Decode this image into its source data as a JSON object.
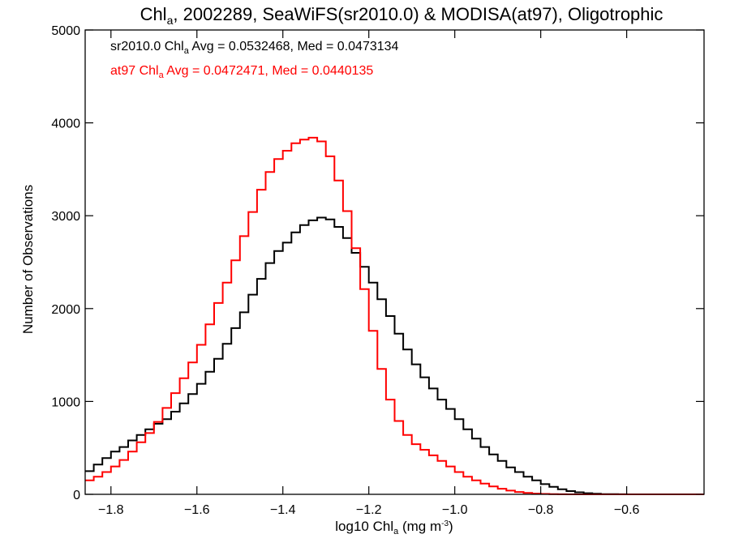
{
  "chart_data": {
    "type": "line",
    "style": "step-histogram",
    "title": {
      "pre": "Chl",
      "sub": "a",
      "post": ", 2002289, SeaWiFS(sr2010.0) & MODISA(at97), Oligotrophic"
    },
    "xlabel": {
      "pre": "log10 Chl",
      "sub": "a",
      "mid": " (mg m",
      "sup": "-3",
      "post": ")"
    },
    "ylabel": "Number of Observations",
    "xlim": [
      -1.86,
      -0.42
    ],
    "ylim": [
      0,
      5000
    ],
    "x_ticks": [
      -1.8,
      -1.6,
      -1.4,
      -1.2,
      -1.0,
      -0.8,
      -0.6
    ],
    "x_tick_labels": [
      "−1.8",
      "−1.6",
      "−1.4",
      "−1.2",
      "−1.0",
      "−0.8",
      "−0.6"
    ],
    "y_ticks": [
      0,
      1000,
      2000,
      3000,
      4000,
      5000
    ],
    "y_tick_labels": [
      "0",
      "1000",
      "2000",
      "3000",
      "4000",
      "5000"
    ],
    "grid": false,
    "legend_position": "top-left",
    "annotations": [
      {
        "pre": "sr2010.0 Chl",
        "sub": "a",
        "post": " Avg = 0.0532468, Med = 0.0473134",
        "color": "#000000"
      },
      {
        "pre": "at97 Chl",
        "sub": "a",
        "post": " Avg = 0.0472471, Med = 0.0440135",
        "color": "#ff0000"
      }
    ],
    "series": [
      {
        "color": "#000000",
        "x": [
          -1.86,
          -1.84,
          -1.82,
          -1.8,
          -1.78,
          -1.76,
          -1.74,
          -1.72,
          -1.7,
          -1.68,
          -1.66,
          -1.64,
          -1.62,
          -1.6,
          -1.58,
          -1.56,
          -1.54,
          -1.52,
          -1.5,
          -1.48,
          -1.46,
          -1.44,
          -1.42,
          -1.4,
          -1.38,
          -1.36,
          -1.34,
          -1.32,
          -1.3,
          -1.28,
          -1.26,
          -1.24,
          -1.22,
          -1.2,
          -1.18,
          -1.16,
          -1.14,
          -1.12,
          -1.1,
          -1.08,
          -1.06,
          -1.04,
          -1.02,
          -1.0,
          -0.98,
          -0.96,
          -0.94,
          -0.92,
          -0.9,
          -0.88,
          -0.86,
          -0.84,
          -0.82,
          -0.8,
          -0.78,
          -0.76,
          -0.74,
          -0.72,
          -0.7,
          -0.68,
          -0.66,
          -0.64,
          -0.62,
          -0.6,
          -0.58,
          -0.56,
          -0.54,
          -0.52,
          -0.5,
          -0.48,
          -0.46,
          -0.44
        ],
        "y": [
          250,
          320,
          390,
          460,
          510,
          580,
          640,
          700,
          760,
          810,
          890,
          980,
          1080,
          1190,
          1320,
          1460,
          1620,
          1790,
          1960,
          2150,
          2320,
          2490,
          2620,
          2710,
          2820,
          2900,
          2950,
          2980,
          2960,
          2880,
          2760,
          2600,
          2450,
          2280,
          2100,
          1920,
          1730,
          1560,
          1400,
          1260,
          1140,
          1020,
          920,
          810,
          700,
          600,
          510,
          430,
          360,
          290,
          240,
          190,
          150,
          110,
          80,
          55,
          35,
          22,
          12,
          6,
          3,
          2,
          1,
          0,
          0,
          0,
          0,
          0,
          0,
          0,
          0,
          0
        ]
      },
      {
        "color": "#ff0000",
        "x": [
          -1.86,
          -1.84,
          -1.82,
          -1.8,
          -1.78,
          -1.76,
          -1.74,
          -1.72,
          -1.7,
          -1.68,
          -1.66,
          -1.64,
          -1.62,
          -1.6,
          -1.58,
          -1.56,
          -1.54,
          -1.52,
          -1.5,
          -1.48,
          -1.46,
          -1.44,
          -1.42,
          -1.4,
          -1.38,
          -1.36,
          -1.34,
          -1.32,
          -1.3,
          -1.28,
          -1.26,
          -1.24,
          -1.22,
          -1.2,
          -1.18,
          -1.16,
          -1.14,
          -1.12,
          -1.1,
          -1.08,
          -1.06,
          -1.04,
          -1.02,
          -1.0,
          -0.98,
          -0.96,
          -0.94,
          -0.92,
          -0.9,
          -0.88,
          -0.86,
          -0.84,
          -0.82,
          -0.8,
          -0.78,
          -0.76,
          -0.74,
          -0.72,
          -0.7,
          -0.68,
          -0.66,
          -0.64,
          -0.62,
          -0.6,
          -0.58,
          -0.56,
          -0.54,
          -0.52,
          -0.5,
          -0.48,
          -0.46,
          -0.44
        ],
        "y": [
          150,
          190,
          240,
          300,
          370,
          460,
          560,
          660,
          780,
          930,
          1090,
          1250,
          1420,
          1610,
          1830,
          2060,
          2280,
          2520,
          2780,
          3040,
          3280,
          3470,
          3610,
          3700,
          3780,
          3820,
          3840,
          3800,
          3640,
          3380,
          3050,
          2650,
          2210,
          1760,
          1350,
          1020,
          790,
          640,
          540,
          480,
          420,
          360,
          300,
          240,
          190,
          150,
          115,
          85,
          60,
          40,
          25,
          15,
          8,
          4,
          2,
          1,
          0,
          0,
          0,
          0,
          0,
          0,
          0,
          0,
          0,
          0,
          0,
          0,
          0,
          0,
          0,
          0
        ]
      }
    ]
  }
}
